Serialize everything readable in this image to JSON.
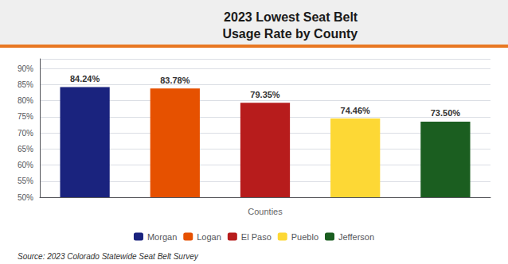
{
  "chart_data": {
    "type": "bar",
    "title": "2023 Lowest Seat Belt\nUsage Rate by County",
    "xlabel": "Counties",
    "categories": [
      "Morgan",
      "Logan",
      "El Paso",
      "Pueblo",
      "Jefferson"
    ],
    "values": [
      84.24,
      83.78,
      79.35,
      74.46,
      73.5
    ],
    "value_labels": [
      "84.24%",
      "83.78%",
      "79.35%",
      "74.46%",
      "73.50%"
    ],
    "colors": [
      "#1a237e",
      "#e65100",
      "#b71c1c",
      "#fdd835",
      "#1b5e20"
    ],
    "ylim": [
      50,
      93
    ],
    "yticks": [
      {
        "value": 50,
        "label": "50%"
      },
      {
        "value": 55,
        "label": "55%"
      },
      {
        "value": 60,
        "label": "60%"
      },
      {
        "value": 65,
        "label": "65%"
      },
      {
        "value": 70,
        "label": "70%"
      },
      {
        "value": 75,
        "label": "75%"
      },
      {
        "value": 80,
        "label": "80%"
      },
      {
        "value": 85,
        "label": "85%"
      },
      {
        "value": 90,
        "label": "90%"
      }
    ],
    "grid": true,
    "legend": "bottom",
    "data_labels": true,
    "tick_labels": "y",
    "annotations": [
      "Source: 2023 Colorado Statewide Seat Belt Survey"
    ]
  }
}
